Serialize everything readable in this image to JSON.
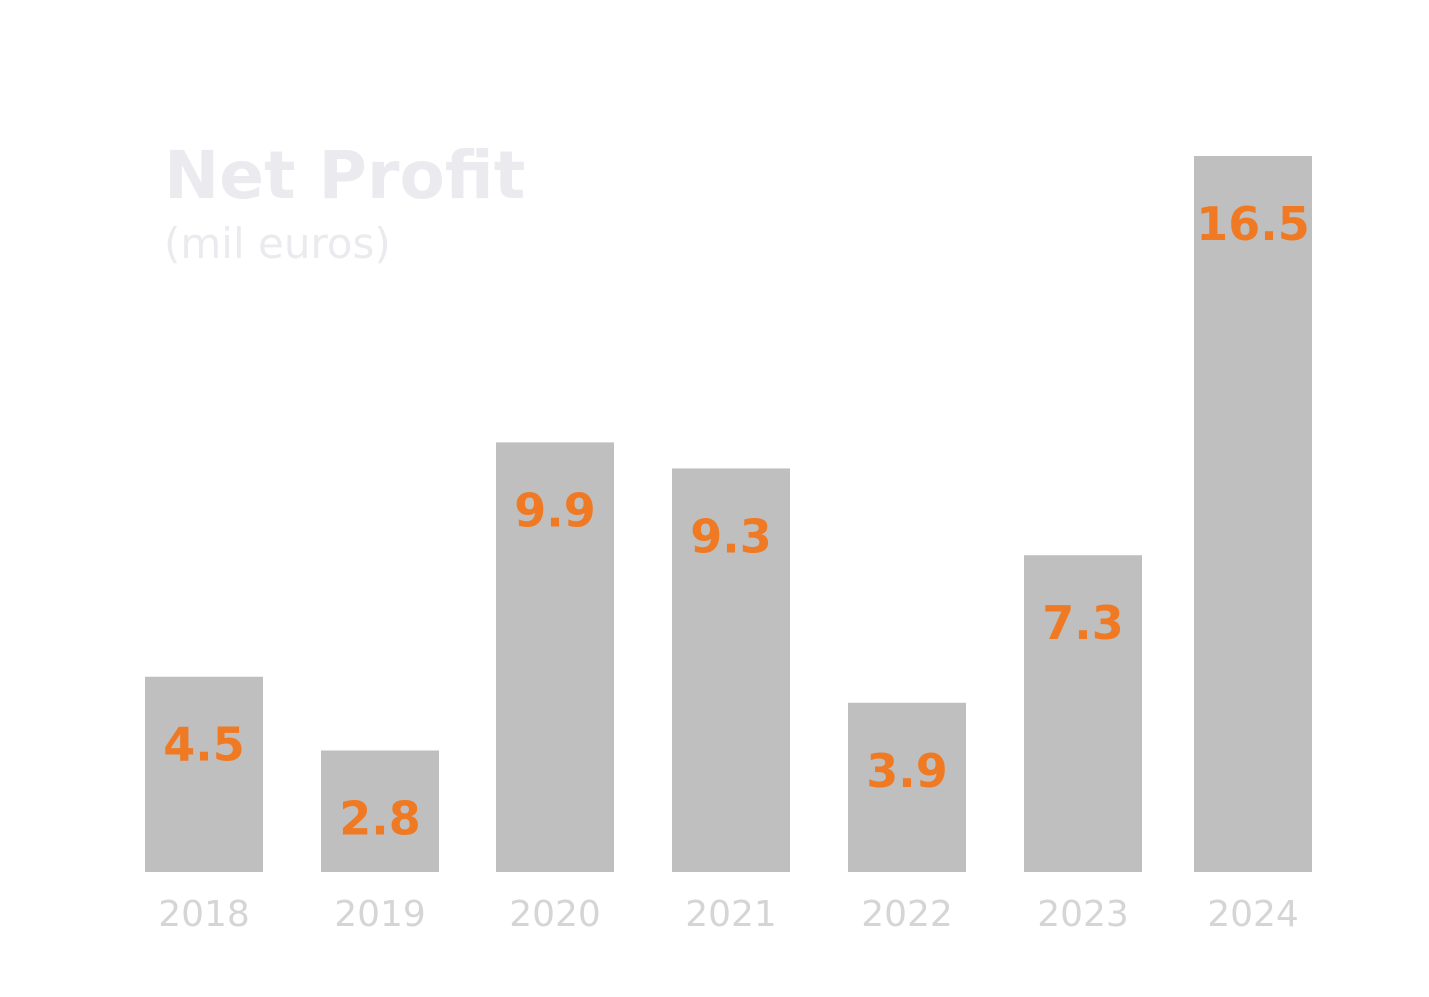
{
  "chart_data": {
    "type": "bar",
    "title": "Net Profit",
    "subtitle": "(mil euros)",
    "categories": [
      "2018",
      "2019",
      "2020",
      "2021",
      "2022",
      "2023",
      "2024"
    ],
    "values": [
      4.5,
      2.8,
      9.9,
      9.3,
      3.9,
      7.3,
      16.5
    ],
    "data_labels": [
      "4.5",
      "2.8",
      "9.9",
      "9.3",
      "3.9",
      "7.3",
      "16.5"
    ],
    "ylim": [
      0,
      16.5
    ],
    "grid": false,
    "legend": "none",
    "xlabel": "",
    "ylabel": ""
  },
  "colors": {
    "bar": "#bfbfbf",
    "label": "#f07a23",
    "title": "#ebebef",
    "tick": "#d5d5d5",
    "background": "#ffffff"
  }
}
